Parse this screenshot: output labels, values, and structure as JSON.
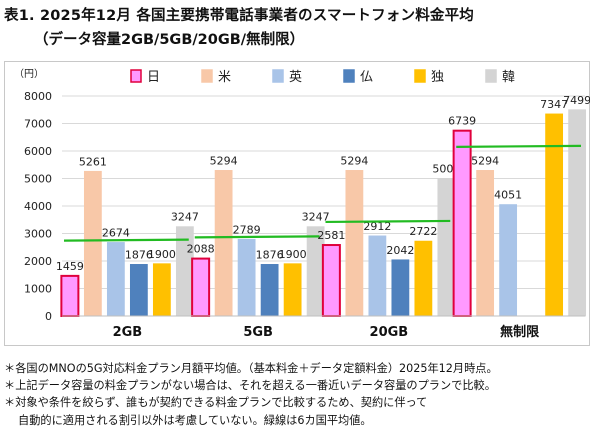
{
  "title": {
    "line1": "表1. 2025年12月 各国主要携帯電話事業者のスマートフォン料金平均",
    "line2": "（データ容量2GB/5GB/20GB/無制限）"
  },
  "chart_data": {
    "type": "bar",
    "title": "",
    "xlabel": "",
    "ylabel": "（円）",
    "ylim": [
      0,
      8000
    ],
    "yticks": [
      0,
      1000,
      2000,
      3000,
      4000,
      5000,
      6000,
      7000,
      8000
    ],
    "grid": true,
    "legend_position": "top",
    "categories": [
      "2GB",
      "5GB",
      "20GB",
      "無制限"
    ],
    "series": [
      {
        "name": "日",
        "color": "#ff99ff",
        "edge": "#e0003c",
        "values": [
          1459,
          2088,
          2581,
          6739
        ]
      },
      {
        "name": "米",
        "color": "#f8c8a8",
        "edge": "#f8c8a8",
        "values": [
          5261,
          5294,
          5294,
          5294
        ]
      },
      {
        "name": "英",
        "color": "#a9c4e8",
        "edge": "#a9c4e8",
        "values": [
          2674,
          2789,
          2912,
          4051
        ]
      },
      {
        "name": "仏",
        "color": "#4f81bd",
        "edge": "#4f81bd",
        "values": [
          1876,
          1876,
          2042,
          null
        ]
      },
      {
        "name": "独",
        "color": "#ffc000",
        "edge": "#ffc000",
        "values": [
          1900,
          1900,
          2722,
          7347
        ]
      },
      {
        "name": "韓",
        "color": "#d4d4d4",
        "edge": "#d4d4d4",
        "values": [
          3247,
          3247,
          5000,
          7499
        ]
      }
    ],
    "average_line": {
      "color": "#22bb22",
      "values": [
        2740,
        2860,
        3420,
        6150
      ]
    }
  },
  "notes": [
    "＊各国のMNOの5G対応料金プラン月額平均値。（基本料金＋データ定額料金）2025年12月時点。",
    "＊上記データ容量の料金プランがない場合は、それを超える一番近いデータ容量のプランで比較。",
    "＊対象や条件を絞らず、誰もが契約できる料金プランで比較するため、契約に伴って",
    "自動的に適用される割引以外は考慮していない。緑線は6カ国平均値。"
  ]
}
